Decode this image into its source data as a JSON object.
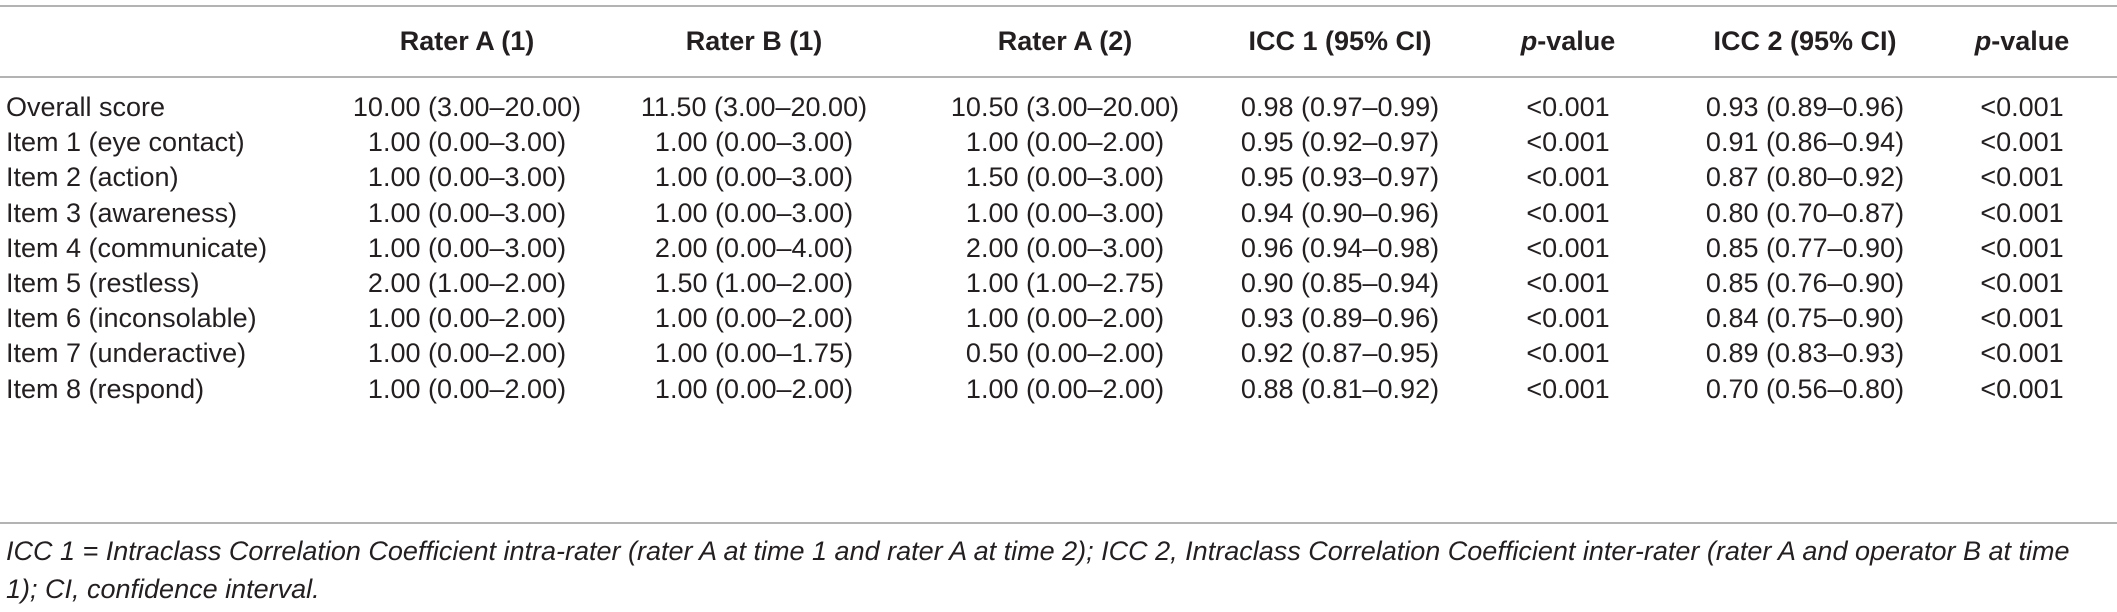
{
  "table": {
    "headers": {
      "label": "",
      "rater_a1": "Rater A (1)",
      "rater_b1": "Rater B (1)",
      "rater_a2": "Rater A (2)",
      "icc1": "ICC 1 (95% CI)",
      "pvalue1_italic": "p",
      "pvalue1_rest": "-value",
      "icc2": "ICC 2 (95% CI)",
      "pvalue2_italic": "p",
      "pvalue2_rest": "-value"
    },
    "rows": [
      {
        "label": "Overall score",
        "a1": "10.00 (3.00–20.00)",
        "b1": "11.50 (3.00–20.00)",
        "a2": "10.50 (3.00–20.00)",
        "icc1": "0.98 (0.97–0.99)",
        "p1": "<0.001",
        "icc2": "0.93 (0.89–0.96)",
        "p2": "<0.001"
      },
      {
        "label": "Item 1 (eye contact)",
        "a1": "1.00 (0.00–3.00)",
        "b1": "1.00 (0.00–3.00)",
        "a2": "1.00 (0.00–2.00)",
        "icc1": "0.95 (0.92–0.97)",
        "p1": "<0.001",
        "icc2": "0.91 (0.86–0.94)",
        "p2": "<0.001"
      },
      {
        "label": "Item 2 (action)",
        "a1": "1.00 (0.00–3.00)",
        "b1": "1.00 (0.00–3.00)",
        "a2": "1.50 (0.00–3.00)",
        "icc1": "0.95 (0.93–0.97)",
        "p1": "<0.001",
        "icc2": "0.87 (0.80–0.92)",
        "p2": "<0.001"
      },
      {
        "label": "Item 3 (awareness)",
        "a1": "1.00 (0.00–3.00)",
        "b1": "1.00 (0.00–3.00)",
        "a2": "1.00 (0.00–3.00)",
        "icc1": "0.94 (0.90–0.96)",
        "p1": "<0.001",
        "icc2": "0.80 (0.70–0.87)",
        "p2": "<0.001"
      },
      {
        "label": "Item 4 (communicate)",
        "a1": "1.00 (0.00–3.00)",
        "b1": "2.00 (0.00–4.00)",
        "a2": "2.00 (0.00–3.00)",
        "icc1": "0.96 (0.94–0.98)",
        "p1": "<0.001",
        "icc2": "0.85 (0.77–0.90)",
        "p2": "<0.001"
      },
      {
        "label": "Item 5 (restless)",
        "a1": "2.00 (1.00–2.00)",
        "b1": "1.50 (1.00–2.00)",
        "a2": "1.00 (1.00–2.75)",
        "icc1": "0.90 (0.85–0.94)",
        "p1": "<0.001",
        "icc2": "0.85 (0.76–0.90)",
        "p2": "<0.001"
      },
      {
        "label": "Item 6 (inconsolable)",
        "a1": "1.00 (0.00–2.00)",
        "b1": "1.00 (0.00–2.00)",
        "a2": "1.00 (0.00–2.00)",
        "icc1": "0.93 (0.89–0.96)",
        "p1": "<0.001",
        "icc2": "0.84 (0.75–0.90)",
        "p2": "<0.001"
      },
      {
        "label": "Item 7 (underactive)",
        "a1": "1.00 (0.00–2.00)",
        "b1": "1.00 (0.00–1.75)",
        "a2": "0.50 (0.00–2.00)",
        "icc1": "0.92 (0.87–0.95)",
        "p1": "<0.001",
        "icc2": "0.89 (0.83–0.93)",
        "p2": "<0.001"
      },
      {
        "label": "Item 8 (respond)",
        "a1": "1.00 (0.00–2.00)",
        "b1": "1.00 (0.00–2.00)",
        "a2": "1.00 (0.00–2.00)",
        "icc1": "0.88 (0.81–0.92)",
        "p1": "<0.001",
        "icc2": "0.70 (0.56–0.80)",
        "p2": "<0.001"
      }
    ]
  },
  "footnote": "ICC 1 = Intraclass Correlation Coefficient intra-rater (rater A at time 1 and rater A at time 2); ICC 2, Intraclass Correlation Coefficient inter-rater (rater A and operator B at time 1); CI, confidence interval."
}
